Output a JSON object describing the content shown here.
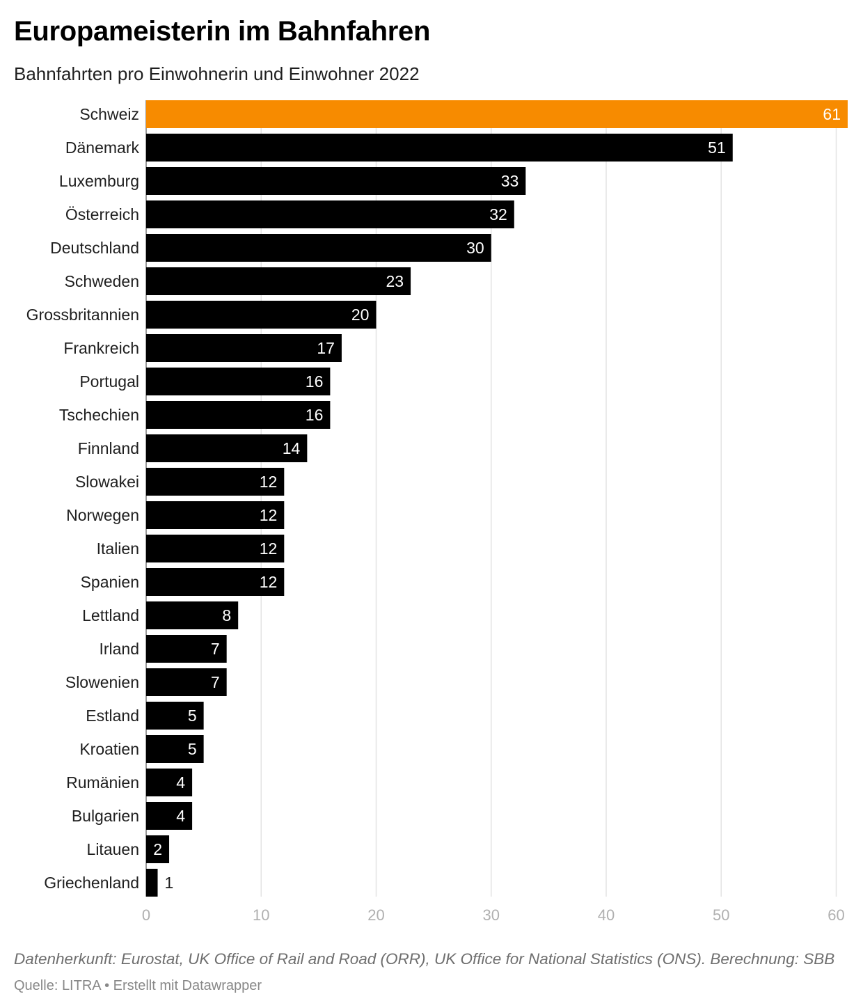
{
  "title": "Europameisterin im Bahnfahren",
  "subtitle": "Bahnfahrten pro Einwohnerin und Einwohner 2022",
  "notes": "Datenherkunft: Eurostat, UK Office of Rail and Road (ORR), UK Office for National Statistics (ONS). Berechnung: SBB",
  "footer": {
    "source_label": "Quelle:",
    "source_name": "LITRA",
    "separator": "•",
    "credit": "Erstellt mit Datawrapper"
  },
  "colors": {
    "highlight": "#f78b00",
    "bar": "#000000",
    "grid": "#e3e3e3",
    "axis_tick": "#b0b0b0"
  },
  "chart_data": {
    "type": "bar",
    "orientation": "horizontal",
    "title": "Europameisterin im Bahnfahren",
    "subtitle": "Bahnfahrten pro Einwohnerin und Einwohner 2022",
    "xlabel": "",
    "ylabel": "",
    "xlim": [
      0,
      61
    ],
    "xticks": [
      0,
      10,
      20,
      30,
      40,
      50,
      60
    ],
    "grid": true,
    "highlight": "Schweiz",
    "categories": [
      "Schweiz",
      "Dänemark",
      "Luxemburg",
      "Österreich",
      "Deutschland",
      "Schweden",
      "Grossbritannien",
      "Frankreich",
      "Portugal",
      "Tschechien",
      "Finnland",
      "Slowakei",
      "Norwegen",
      "Italien",
      "Spanien",
      "Lettland",
      "Irland",
      "Slowenien",
      "Estland",
      "Kroatien",
      "Rumänien",
      "Bulgarien",
      "Litauen",
      "Griechenland"
    ],
    "values": [
      61,
      51,
      33,
      32,
      30,
      23,
      20,
      17,
      16,
      16,
      14,
      12,
      12,
      12,
      12,
      8,
      7,
      7,
      5,
      5,
      4,
      4,
      2,
      1
    ]
  }
}
